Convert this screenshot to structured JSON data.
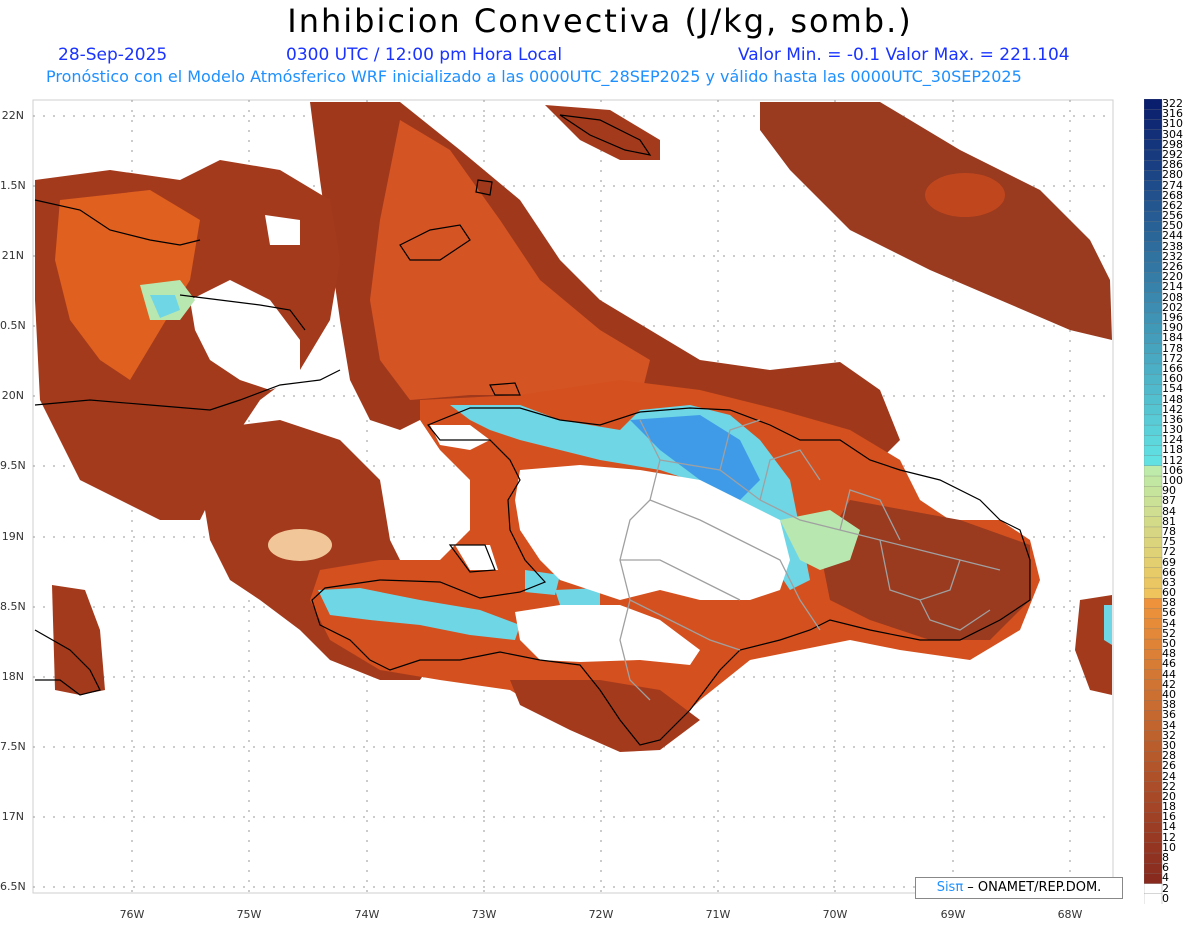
{
  "header": {
    "title": "Inhibicion Convectiva (J/kg, somb.)",
    "date": "28-Sep-2025",
    "time": "0300 UTC / 12:00 pm Hora Local",
    "minmax": "Valor Min. = -0.1  Valor Max. = 221.104",
    "model_line": "Pronóstico con el Modelo Atmósferico WRF inicializado a las 0000UTC_28SEP2025 y válido hasta las  0000UTC_30SEP2025"
  },
  "axes": {
    "lat_ticks": [
      "22N",
      "1.5N",
      "21N",
      "0.5N",
      "20N",
      "9.5N",
      "19N",
      "8.5N",
      "18N",
      "7.5N",
      "17N",
      "6.5N"
    ],
    "lon_ticks": [
      "76W",
      "75W",
      "74W",
      "73W",
      "72W",
      "71W",
      "70W",
      "69W",
      "68W"
    ]
  },
  "colorbar": {
    "labels": [
      "322",
      "316",
      "310",
      "304",
      "298",
      "292",
      "286",
      "280",
      "274",
      "268",
      "262",
      "256",
      "250",
      "244",
      "238",
      "232",
      "226",
      "220",
      "214",
      "208",
      "202",
      "196",
      "190",
      "184",
      "178",
      "172",
      "166",
      "160",
      "154",
      "148",
      "142",
      "136",
      "130",
      "124",
      "118",
      "112",
      "106",
      "100",
      "90",
      "87",
      "84",
      "81",
      "78",
      "75",
      "72",
      "69",
      "66",
      "63",
      "60",
      "58",
      "56",
      "54",
      "52",
      "50",
      "48",
      "46",
      "44",
      "42",
      "40",
      "38",
      "36",
      "34",
      "32",
      "30",
      "28",
      "26",
      "24",
      "22",
      "20",
      "18",
      "16",
      "14",
      "12",
      "10",
      "8",
      "6",
      "4",
      "2",
      "0"
    ]
  },
  "credit": {
    "brand": "Sisπ",
    "text": " – ONAMET/REP.DOM."
  },
  "colors": {
    "dark_field": "#8f3219",
    "mid_field": "#d4501e",
    "bright_field": "#f06a22",
    "low_cin_green": "#b8e8b0",
    "cyan": "#6fd6e6",
    "blue": "#3f9be8",
    "coast": "#000000",
    "provinces": "#9a9a9a"
  }
}
